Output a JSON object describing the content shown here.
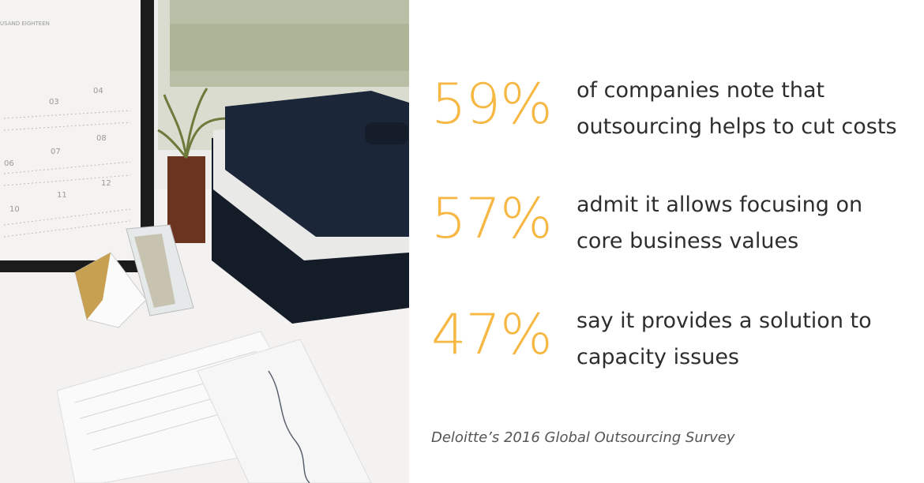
{
  "stats": [
    {
      "value": "59%",
      "lines": [
        "of companies note that",
        "outsourcing helps to cut costs"
      ]
    },
    {
      "value": "57%",
      "lines": [
        "admit it allows focusing on",
        "core business values"
      ]
    },
    {
      "value": "47%",
      "lines": [
        "say it provides a solution to",
        "capacity issues"
      ]
    }
  ],
  "source": "Deloitte’s 2016 Global Outsourcing Survey"
}
